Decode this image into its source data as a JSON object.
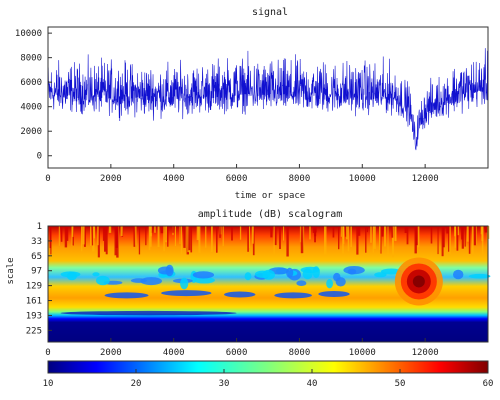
{
  "chart_data": [
    {
      "type": "line",
      "title": "signal",
      "xlabel": "time or space",
      "ylabel": "",
      "xlim": [
        0,
        14000
      ],
      "ylim": [
        -1000,
        10500
      ],
      "xticks": [
        "0",
        "2000",
        "4000",
        "6000",
        "8000",
        "10000",
        "12000"
      ],
      "yticks": [
        "0",
        "2000",
        "4000",
        "6000",
        "8000",
        "10000"
      ],
      "line_color": "#1010d0",
      "series_envelope": {
        "x": [
          0,
          1000,
          2000,
          3000,
          4000,
          5000,
          6000,
          7000,
          8000,
          9000,
          10000,
          11000,
          11500,
          11700,
          11800,
          12000,
          12500,
          13000,
          14000
        ],
        "mean": [
          5100,
          5000,
          5000,
          4900,
          4900,
          5000,
          5200,
          5100,
          5100,
          5100,
          5000,
          4900,
          4000,
          600,
          2500,
          3600,
          4400,
          5000,
          5600
        ],
        "min": [
          3000,
          2900,
          2800,
          2500,
          2600,
          2900,
          3000,
          3000,
          3000,
          2800,
          2900,
          2800,
          2000,
          200,
          1000,
          1800,
          2600,
          3000,
          3600
        ],
        "max": [
          8800,
          8600,
          8800,
          8500,
          8400,
          8700,
          9200,
          8900,
          8900,
          8800,
          8800,
          8600,
          6500,
          3000,
          4800,
          6500,
          7500,
          8800,
          9500
        ]
      }
    },
    {
      "type": "heatmap",
      "title": "amplitude (dB) scalogram",
      "xlabel": "",
      "ylabel": "scale",
      "xlim": [
        0,
        14000
      ],
      "ylim": [
        1,
        250
      ],
      "xticks": [
        "0",
        "2000",
        "4000",
        "6000",
        "8000",
        "10000",
        "12000"
      ],
      "yticks": [
        "1",
        "33",
        "65",
        "97",
        "129",
        "161",
        "193",
        "225"
      ],
      "colorbar": {
        "ticks": [
          "10",
          "20",
          "30",
          "40",
          "50",
          "60"
        ],
        "range": [
          10,
          60
        ],
        "colormap": "jet"
      },
      "hotspot": {
        "x": 11800,
        "scale": 120,
        "value_db": 58
      }
    }
  ]
}
